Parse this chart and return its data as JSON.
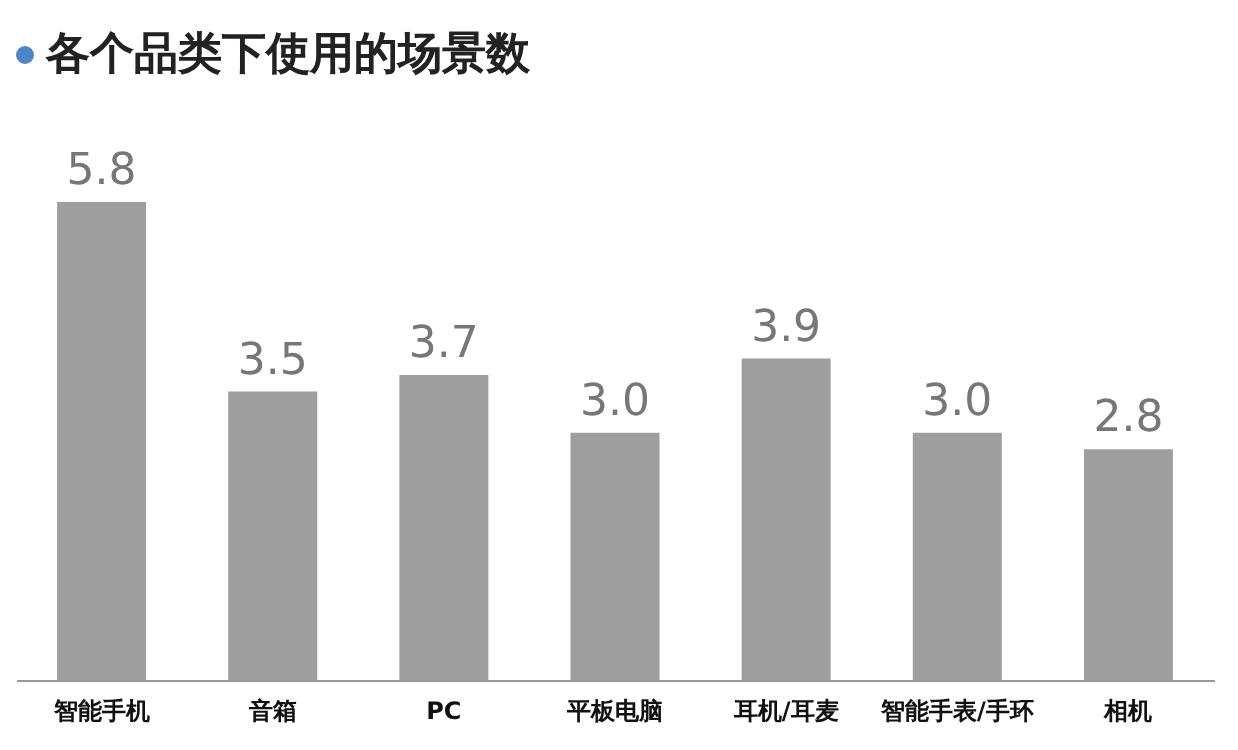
{
  "chart_data": {
    "type": "bar",
    "title": "各个品类下使用的场景数",
    "categories": [
      "智能手机",
      "音箱",
      "PC",
      "平板电脑",
      "耳机/耳麦",
      "智能手表/手环",
      "相机"
    ],
    "values": [
      5.8,
      3.5,
      3.7,
      3.0,
      3.9,
      3.0,
      2.8
    ],
    "value_labels": [
      "5.8",
      "3.5",
      "3.7",
      "3.0",
      "3.9",
      "3.0",
      "2.8"
    ],
    "color": "#9e9e9e"
  }
}
